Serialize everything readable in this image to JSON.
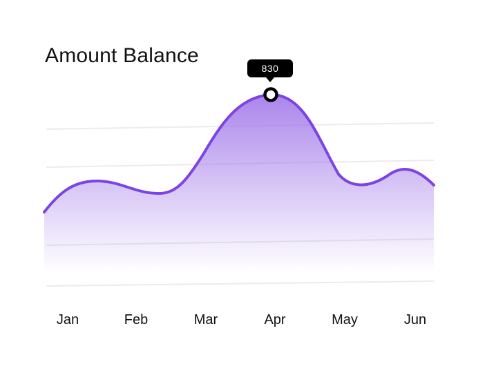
{
  "title": "Amount Balance",
  "tooltip": {
    "value": "830"
  },
  "colors": {
    "line": "#7C44E0",
    "fill": "#9C6FE8",
    "grid": "#EBEBF0"
  },
  "chart_data": {
    "type": "area",
    "title": "Amount Balance",
    "categories": [
      "Jan",
      "Feb",
      "Mar",
      "Apr",
      "May",
      "Jun"
    ],
    "grid": true,
    "highlight": {
      "category": "Apr",
      "value": 830
    }
  }
}
